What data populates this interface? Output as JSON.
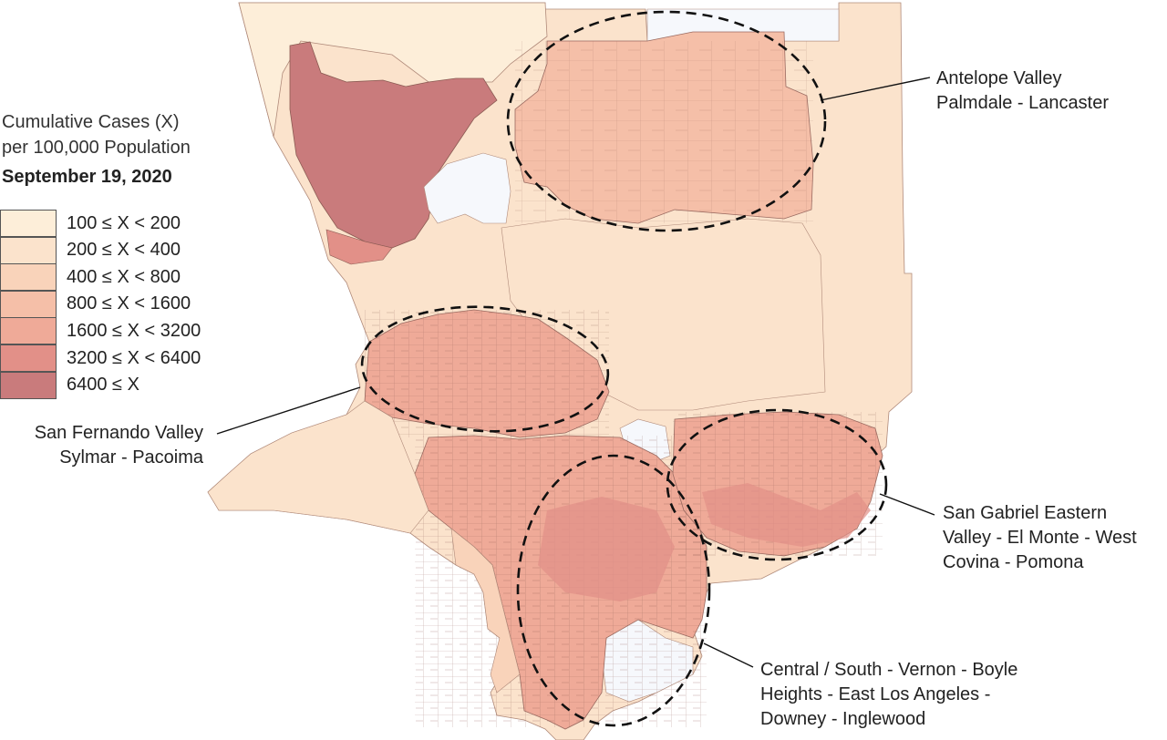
{
  "legend": {
    "title_line1": "Cumulative Cases (X)",
    "title_line2": "per 100,000 Population",
    "date": "September 19, 2020",
    "items": [
      {
        "label": "100 ≤ X < 200",
        "color": "#fdeed9"
      },
      {
        "label": "200 ≤ X < 400",
        "color": "#fbe3cc"
      },
      {
        "label": "400 ≤ X < 800",
        "color": "#f9d3ba"
      },
      {
        "label": "800 ≤ X < 1600",
        "color": "#f5bfa8"
      },
      {
        "label": "1600 ≤ X < 3200",
        "color": "#efaa98"
      },
      {
        "label": "3200 ≤ X < 6400",
        "color": "#e29088"
      },
      {
        "label": "6400 ≤ X",
        "color": "#c97b7c"
      }
    ]
  },
  "annotations": {
    "antelope": [
      "Antelope Valley",
      "Palmdale - Lancaster"
    ],
    "sfv": [
      "San Fernando Valley",
      "Sylmar - Pacoima"
    ],
    "sgv": [
      "San Gabriel Eastern",
      "Valley - El Monte - West",
      "Covina - Pomona"
    ],
    "central": [
      "Central / South - Vernon - Boyle",
      "Heights - East Los Angeles -",
      "Downey - Inglewood"
    ]
  }
}
